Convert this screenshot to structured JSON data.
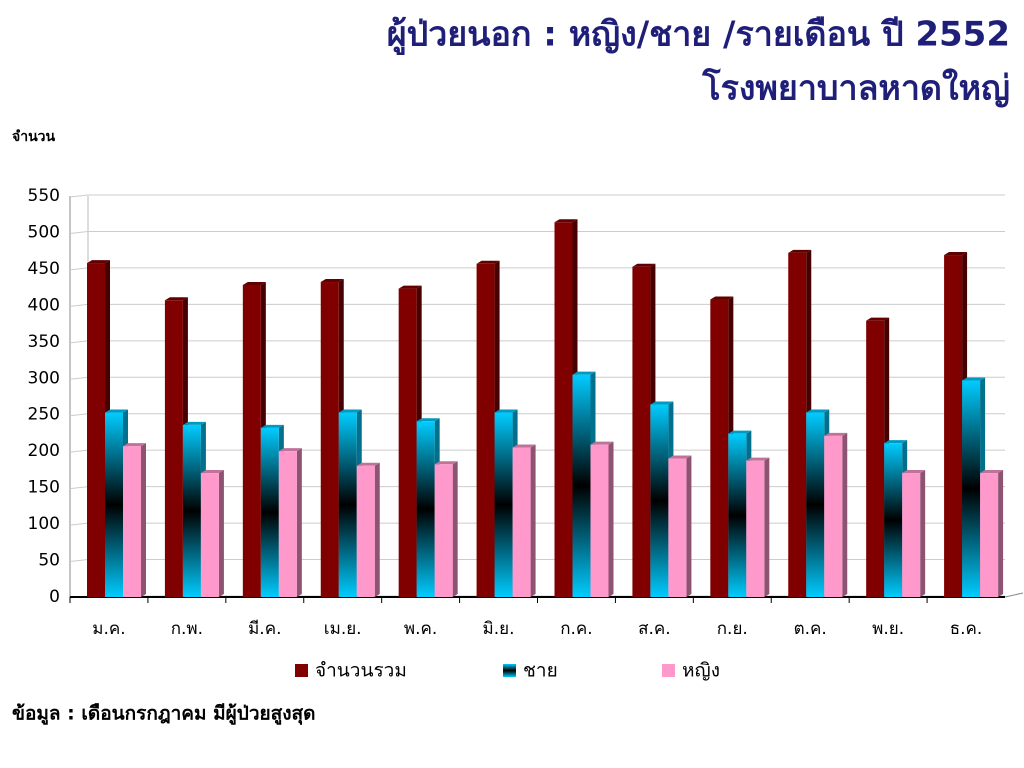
{
  "chart_data": {
    "type": "bar",
    "title": "ผู้ป่วยนอก : หญิง/ชาย /รายเดือน ปี 2552",
    "subtitle": "โรงพยาบาลหาดใหญ่",
    "y_label": "จำนวน",
    "note": "ข้อมูล : เดือนกรกฎาคม มีผู้ป่วยสูงสุด",
    "categories": [
      "ม.ค.",
      "ก.พ.",
      "มี.ค.",
      "เม.ย.",
      "พ.ค.",
      "มิ.ย.",
      "ก.ค.",
      "ส.ค.",
      "ก.ย.",
      "ต.ค.",
      "พ.ย.",
      "ธ.ค."
    ],
    "series": [
      {
        "name": "จำนวนรวม",
        "color": "#800000",
        "values": [
          458,
          407,
          428,
          432,
          423,
          457,
          514,
          453,
          408,
          472,
          379,
          469
        ]
      },
      {
        "name": "ชาย",
        "color": "#00ccff",
        "values": [
          253,
          236,
          232,
          253,
          241,
          253,
          305,
          264,
          224,
          253,
          211,
          297
        ]
      },
      {
        "name": "หญิง",
        "color": "#ff99cc",
        "values": [
          207,
          170,
          200,
          180,
          182,
          205,
          209,
          190,
          187,
          221,
          170,
          170
        ]
      }
    ],
    "ylim": [
      0,
      550
    ],
    "yticks": [
      0,
      50,
      100,
      150,
      200,
      250,
      300,
      350,
      400,
      450,
      500,
      550
    ],
    "grid": true
  }
}
